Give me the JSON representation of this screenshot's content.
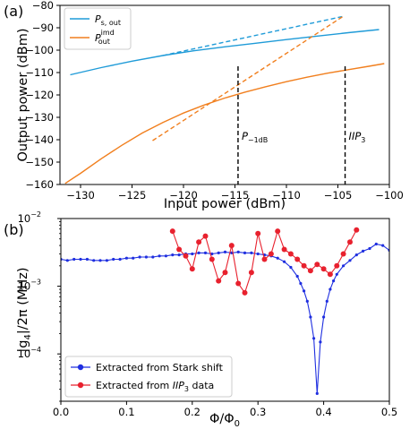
{
  "colors": {
    "signal": "#1f9bd8",
    "imd": "#f17f1e",
    "stark": "#1f2fe0",
    "iip3": "#e8212e",
    "marker": "#000000"
  },
  "chart_data": [
    {
      "panel_label": "(a)",
      "type": "line",
      "xlabel": "Input power (dBm)",
      "ylabel": "Output power (dBm)",
      "xlim": [
        -132,
        -100
      ],
      "ylim": [
        -160,
        -80
      ],
      "xticks": [
        -130,
        -125,
        -120,
        -115,
        -110,
        -105,
        -100
      ],
      "yticks": [
        -160,
        -150,
        -140,
        -130,
        -120,
        -110,
        -100,
        -90,
        -80
      ],
      "xtick_labels": [
        "−130",
        "−125",
        "−120",
        "−115",
        "−110",
        "−105",
        "−100"
      ],
      "ytick_labels": [
        "−160",
        "−150",
        "−140",
        "−130",
        "−120",
        "−110",
        "−100",
        "−90",
        "−80"
      ],
      "legend": {
        "position": "upper-left",
        "entries": [
          {
            "label": "P",
            "sub": "s, out",
            "sup": ""
          },
          {
            "label": "P",
            "sub": "out",
            "sup": "imd"
          }
        ]
      },
      "series": [
        {
          "name": "P_s,out",
          "style": "solid",
          "x": [
            -131,
            -128,
            -125,
            -122,
            -119,
            -116,
            -113,
            -110,
            -107,
            -104,
            -101
          ],
          "y": [
            -111,
            -107.8,
            -104.9,
            -102.4,
            -100.3,
            -98.5,
            -96.9,
            -95.3,
            -93.7,
            -92.2,
            -90.8
          ]
        },
        {
          "name": "P_s,out linear fit",
          "style": "dashed",
          "x": [
            -122,
            -104.5
          ],
          "y": [
            -102.4,
            -84.9
          ]
        },
        {
          "name": "P_out^imd",
          "style": "solid",
          "x": [
            -131.5,
            -130,
            -128,
            -126,
            -124,
            -122,
            -120,
            -118,
            -116,
            -114,
            -112,
            -110,
            -108,
            -106,
            -104,
            -102,
            -100.5
          ],
          "y": [
            -159.5,
            -155,
            -148.5,
            -142.5,
            -137,
            -132.3,
            -128.1,
            -124.5,
            -121.4,
            -118.7,
            -116.3,
            -114.1,
            -112.1,
            -110.3,
            -108.7,
            -107.2,
            -106
          ]
        },
        {
          "name": "P_out^imd linear fit",
          "style": "dashed",
          "x": [
            -123,
            -104.5
          ],
          "y": [
            -140.4,
            -84.9
          ]
        }
      ],
      "markers": [
        {
          "x": -114.7,
          "label": "P",
          "sub": "−1dB"
        },
        {
          "x": -104.3,
          "label": "IIP",
          "sub": "3"
        }
      ]
    },
    {
      "panel_label": "(b)",
      "type": "line",
      "xlabel": "Φ/Φ",
      "xlabel_sub": "0",
      "ylabel": "|g",
      "ylabel_sub": "4",
      "ylabel_tail": "|/2π (MHz)",
      "yscale": "log",
      "xlim": [
        0.0,
        0.5
      ],
      "ylim": [
        2e-05,
        0.01
      ],
      "xticks": [
        0.0,
        0.1,
        0.2,
        0.3,
        0.4,
        0.5
      ],
      "xtick_labels": [
        "0.0",
        "0.1",
        "0.2",
        "0.3",
        "0.4",
        "0.5"
      ],
      "ytick_base": "10",
      "yticks": [
        -4,
        -3,
        -2
      ],
      "ytick_exps": [
        "−4",
        "−3",
        "−2"
      ],
      "legend": {
        "position": "lower-left",
        "entries": [
          {
            "text": "Extracted from Stark shift"
          },
          {
            "text_pre": "Extracted from ",
            "text_em": "IIP",
            "text_sub": "3",
            "text_post": " data"
          }
        ]
      },
      "series": [
        {
          "name": "Extracted from Stark shift",
          "x": [
            0.0,
            0.01,
            0.02,
            0.03,
            0.04,
            0.05,
            0.06,
            0.07,
            0.08,
            0.09,
            0.1,
            0.11,
            0.12,
            0.13,
            0.14,
            0.15,
            0.16,
            0.17,
            0.18,
            0.19,
            0.2,
            0.21,
            0.22,
            0.23,
            0.24,
            0.25,
            0.26,
            0.27,
            0.28,
            0.29,
            0.3,
            0.31,
            0.32,
            0.33,
            0.34,
            0.35,
            0.36,
            0.365,
            0.37,
            0.375,
            0.38,
            0.385,
            0.39,
            0.395,
            0.4,
            0.405,
            0.41,
            0.415,
            0.42,
            0.43,
            0.44,
            0.45,
            0.46,
            0.47,
            0.48,
            0.49,
            0.5
          ],
          "y": [
            0.0025,
            0.0024,
            0.0025,
            0.0025,
            0.0025,
            0.0024,
            0.0024,
            0.0024,
            0.0025,
            0.0025,
            0.0026,
            0.0026,
            0.0027,
            0.0027,
            0.0027,
            0.0028,
            0.0028,
            0.0029,
            0.0029,
            0.003,
            0.003,
            0.0031,
            0.0031,
            0.003,
            0.0031,
            0.0032,
            0.0031,
            0.0032,
            0.0031,
            0.0031,
            0.003,
            0.0029,
            0.0028,
            0.0026,
            0.0023,
            0.0019,
            0.0014,
            0.0011,
            0.00085,
            0.0006,
            0.00035,
            0.00017,
            2.6e-05,
            0.00015,
            0.00035,
            0.0006,
            0.0009,
            0.0012,
            0.0015,
            0.002,
            0.0024,
            0.0029,
            0.0033,
            0.0036,
            0.0042,
            0.004,
            0.0034
          ]
        },
        {
          "name": "Extracted from IIP3 data",
          "x": [
            0.17,
            0.18,
            0.19,
            0.2,
            0.21,
            0.22,
            0.23,
            0.24,
            0.25,
            0.26,
            0.27,
            0.28,
            0.29,
            0.3,
            0.31,
            0.32,
            0.33,
            0.34,
            0.35,
            0.36,
            0.37,
            0.38,
            0.39,
            0.4,
            0.41,
            0.42,
            0.43,
            0.44,
            0.45
          ],
          "y": [
            0.0065,
            0.0035,
            0.0028,
            0.0018,
            0.0045,
            0.0055,
            0.0025,
            0.0012,
            0.0016,
            0.004,
            0.0011,
            0.0008,
            0.0016,
            0.006,
            0.0025,
            0.003,
            0.0065,
            0.0035,
            0.003,
            0.0025,
            0.002,
            0.0017,
            0.0021,
            0.0018,
            0.0015,
            0.002,
            0.003,
            0.0045,
            0.0068
          ]
        }
      ]
    }
  ]
}
